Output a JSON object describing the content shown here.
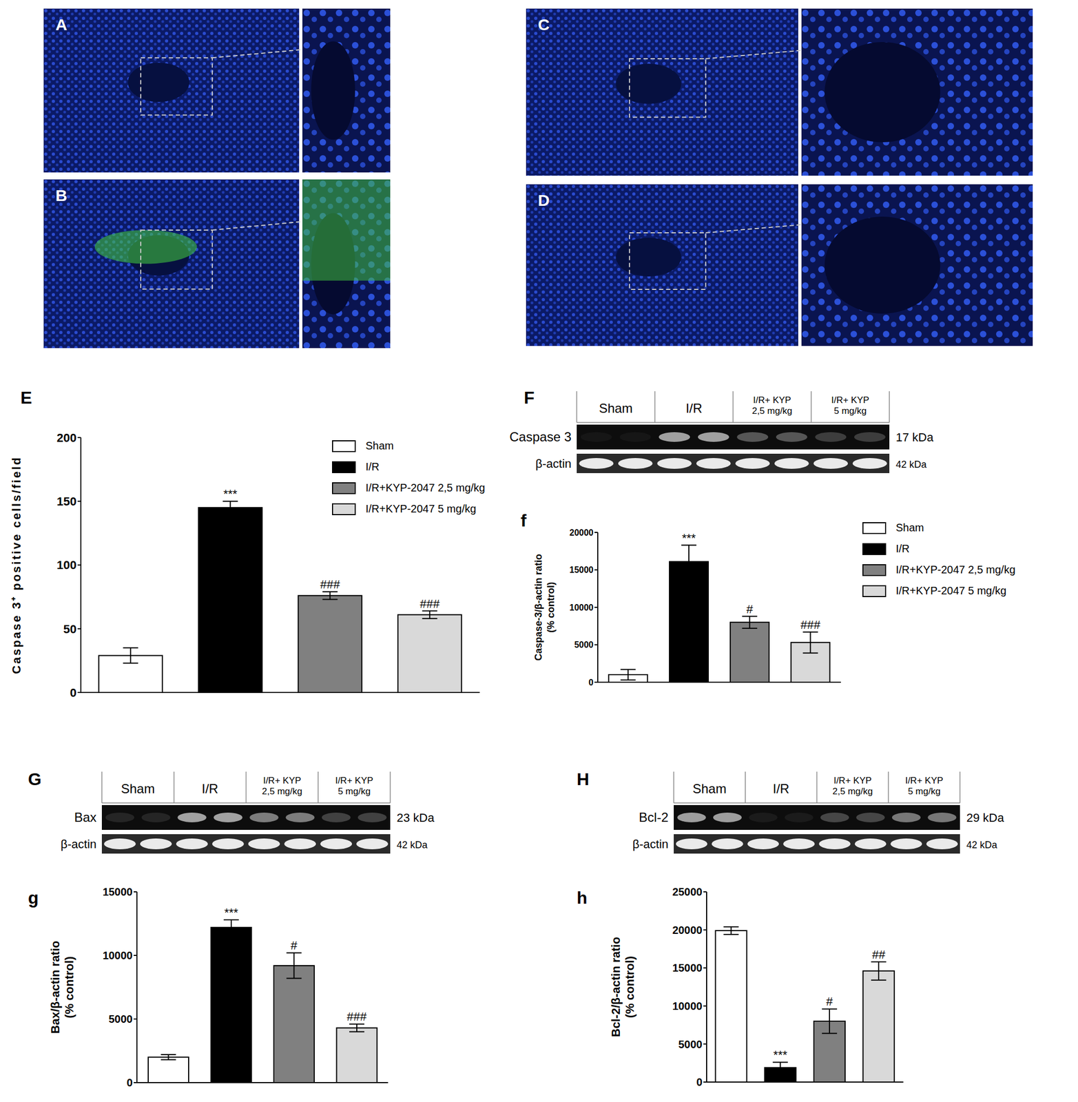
{
  "image_panels": [
    "A",
    "B",
    "C",
    "D"
  ],
  "blots": [
    {
      "title": "F",
      "groups": [
        [
          "Sham"
        ],
        [
          "I/R"
        ],
        [
          "I/R+ KYP",
          "2,5 mg/kg"
        ],
        [
          "I/R+ KYP",
          "5 mg/kg"
        ]
      ],
      "rows": [
        {
          "label": "Caspase 3",
          "size": "17 kDa"
        },
        {
          "label": "β-actin",
          "size": "42 kDa"
        }
      ]
    },
    {
      "title": "G",
      "groups": [
        [
          "Sham"
        ],
        [
          "I/R"
        ],
        [
          "I/R+ KYP",
          "2,5 mg/kg"
        ],
        [
          "I/R+ KYP",
          "5 mg/kg"
        ]
      ],
      "rows": [
        {
          "label": "Bax",
          "size": "23 kDa"
        },
        {
          "label": "β-actin",
          "size": "42 kDa"
        }
      ]
    },
    {
      "title": "H",
      "groups": [
        [
          "Sham"
        ],
        [
          "I/R"
        ],
        [
          "I/R+ KYP",
          "2,5 mg/kg"
        ],
        [
          "I/R+ KYP",
          "5 mg/kg"
        ]
      ],
      "rows": [
        {
          "label": "Bcl-2",
          "size": "29 kDa"
        },
        {
          "label": "β-actin",
          "size": "42 kDa"
        }
      ]
    }
  ],
  "chart_data": [
    {
      "type": "bar",
      "title": "E",
      "ylabel": "Caspase 3⁺ positive cells/field",
      "categories": [
        "Sham",
        "I/R",
        "I/R+KYP-2047 2,5 mg/kg",
        "I/R+KYP-2047 5 mg/kg"
      ],
      "values": [
        29,
        145,
        76,
        61
      ],
      "error": [
        6,
        5,
        3,
        3
      ],
      "annotations": [
        null,
        "***",
        "###",
        "###"
      ],
      "colors": [
        "#ffffff",
        "#000000",
        "#808080",
        "#d9d9d9"
      ],
      "ylim": [
        0,
        200
      ],
      "yticks": [
        0,
        50,
        100,
        150,
        200
      ],
      "legend": "upper right",
      "tick_labels": "y"
    },
    {
      "type": "bar",
      "title": "f",
      "ylabel": "Caspase-3/β-actin ratio (% control)",
      "categories": [
        "Sham",
        "I/R",
        "I/R+KYP-2047 2,5 mg/kg",
        "I/R+KYP-2047 5 mg/kg"
      ],
      "values": [
        1000,
        16100,
        8000,
        5300
      ],
      "error": [
        700,
        2200,
        800,
        1400
      ],
      "annotations": [
        null,
        "***",
        "#",
        "###"
      ],
      "colors": [
        "#ffffff",
        "#000000",
        "#808080",
        "#d9d9d9"
      ],
      "ylim": [
        0,
        20000
      ],
      "yticks": [
        0,
        5000,
        10000,
        15000,
        20000
      ],
      "legend": "right",
      "tick_labels": "y"
    },
    {
      "type": "bar",
      "title": "g",
      "ylabel": "Bax/β-actin ratio (% control)",
      "categories": [
        null,
        null,
        null,
        null
      ],
      "values": [
        2000,
        12200,
        9200,
        4300
      ],
      "error": [
        200,
        600,
        1000,
        300
      ],
      "annotations": [
        null,
        "***",
        "#",
        "###"
      ],
      "colors": [
        "#ffffff",
        "#000000",
        "#808080",
        "#d9d9d9"
      ],
      "ylim": [
        0,
        15000
      ],
      "yticks": [
        0,
        5000,
        10000,
        15000
      ],
      "tick_labels": "y"
    },
    {
      "type": "bar",
      "title": "h",
      "ylabel": "Bcl-2/β-actin ratio (% control)",
      "categories": [
        null,
        null,
        null,
        null
      ],
      "values": [
        19900,
        1900,
        8000,
        14600
      ],
      "error": [
        500,
        700,
        1600,
        1200
      ],
      "annotations": [
        null,
        "***",
        "#",
        "##"
      ],
      "colors": [
        "#ffffff",
        "#000000",
        "#808080",
        "#d9d9d9"
      ],
      "ylim": [
        0,
        25000
      ],
      "yticks": [
        0,
        5000,
        10000,
        15000,
        20000,
        25000
      ],
      "tick_labels": "y"
    }
  ]
}
